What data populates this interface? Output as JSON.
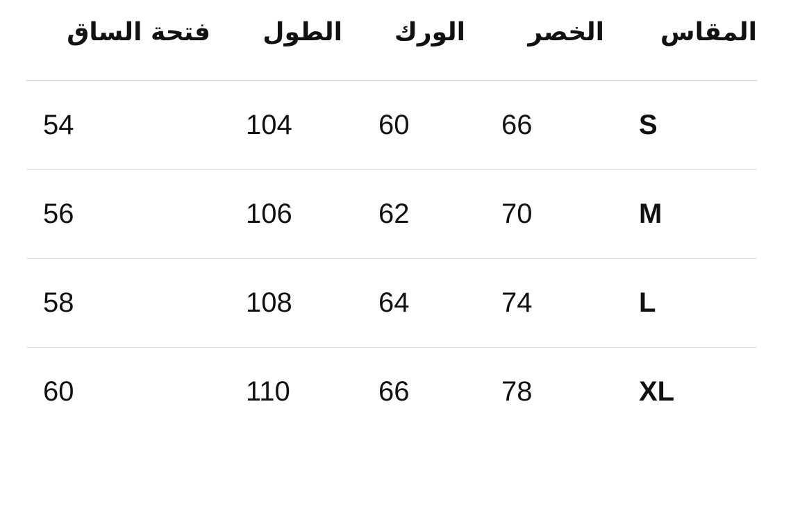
{
  "table": {
    "headers": [
      "المقاس",
      "الخصر",
      "الورك",
      "الطول",
      "فتحة الساق"
    ],
    "rows": [
      [
        "S",
        "66",
        "60",
        "104",
        "54"
      ],
      [
        "M",
        "70",
        "62",
        "106",
        "56"
      ],
      [
        "L",
        "74",
        "64",
        "108",
        "58"
      ],
      [
        "XL",
        "78",
        "66",
        "110",
        "60"
      ]
    ]
  }
}
